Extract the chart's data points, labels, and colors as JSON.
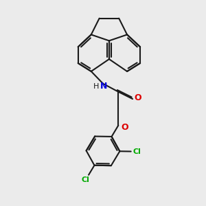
{
  "background_color": "#ebebeb",
  "bond_color": "#1a1a1a",
  "n_color": "#0000dd",
  "o_color": "#dd0000",
  "cl_color": "#00aa00",
  "linewidth": 1.5,
  "figsize": [
    3.0,
    3.0
  ],
  "dpi": 100,
  "xlim": [
    0,
    10
  ],
  "ylim": [
    0,
    10
  ]
}
